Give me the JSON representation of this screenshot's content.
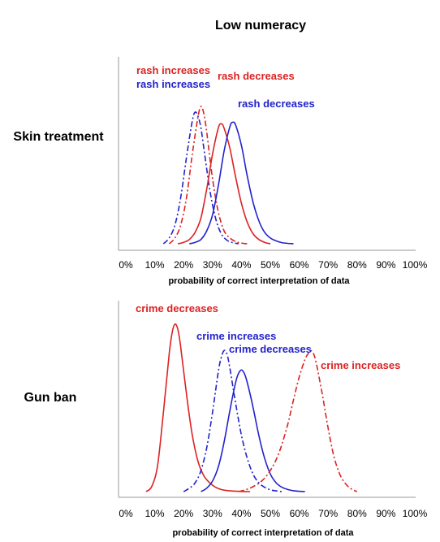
{
  "figure": {
    "title": "Low numeracy"
  },
  "chart_data": [
    {
      "type": "line",
      "row_label": "Skin treatment",
      "xlabel": "probability of correct interpretation of data",
      "ylabel": "",
      "xlim": [
        0,
        100
      ],
      "x_ticks": [
        "0%",
        "10%",
        "20%",
        "30%",
        "40%",
        "50%",
        "60%",
        "70%",
        "80%",
        "90%",
        "100%"
      ],
      "grid": false,
      "series": [
        {
          "name": "rash increases",
          "color": "#dd2222",
          "dash": "dashdot",
          "x": [
            15,
            17,
            19,
            21,
            23,
            25,
            26,
            27,
            28,
            30,
            32,
            34,
            36,
            38,
            40,
            42
          ],
          "y": [
            0.0,
            0.04,
            0.13,
            0.32,
            0.62,
            0.88,
            0.95,
            0.9,
            0.77,
            0.45,
            0.22,
            0.09,
            0.04,
            0.015,
            0.005,
            0.0
          ]
        },
        {
          "name": "rash increases",
          "color": "#2222cc",
          "dash": "dashdot",
          "x": [
            13,
            15,
            17,
            19,
            21,
            23,
            24,
            25,
            26,
            27,
            29,
            31,
            33,
            35,
            37,
            39
          ],
          "y": [
            0.0,
            0.04,
            0.13,
            0.32,
            0.6,
            0.85,
            0.91,
            0.88,
            0.8,
            0.66,
            0.38,
            0.18,
            0.07,
            0.025,
            0.008,
            0.0
          ]
        },
        {
          "name": "rash decreases",
          "color": "#dd2222",
          "dash": "solid",
          "x": [
            18,
            20,
            22,
            24,
            26,
            28,
            30,
            32,
            33,
            34,
            36,
            38,
            40,
            42,
            44,
            46,
            48,
            50
          ],
          "y": [
            0.0,
            0.01,
            0.03,
            0.08,
            0.18,
            0.38,
            0.62,
            0.8,
            0.83,
            0.8,
            0.66,
            0.46,
            0.28,
            0.15,
            0.07,
            0.03,
            0.01,
            0.0
          ]
        },
        {
          "name": "rash decreases",
          "color": "#2222cc",
          "dash": "solid",
          "x": [
            22,
            24,
            26,
            28,
            30,
            32,
            34,
            36,
            37,
            38,
            40,
            42,
            44,
            46,
            48,
            50,
            52,
            54,
            56,
            58
          ],
          "y": [
            0.0,
            0.01,
            0.03,
            0.09,
            0.2,
            0.4,
            0.64,
            0.81,
            0.84,
            0.82,
            0.68,
            0.47,
            0.29,
            0.16,
            0.08,
            0.04,
            0.02,
            0.008,
            0.003,
            0.0
          ]
        }
      ],
      "annotations": [
        {
          "text": "rash increases",
          "color": "#dd2222"
        },
        {
          "text": "rash increases",
          "color": "#2222cc"
        },
        {
          "text": "rash decreases",
          "color": "#dd2222"
        },
        {
          "text": "rash decreases",
          "color": "#2222cc"
        }
      ]
    },
    {
      "type": "line",
      "row_label": "Gun ban",
      "xlabel": "probability of correct interpretation of data",
      "ylabel": "",
      "xlim": [
        0,
        100
      ],
      "x_ticks": [
        "0%",
        "10%",
        "20%",
        "30%",
        "40%",
        "50%",
        "60%",
        "70%",
        "80%",
        "90%",
        "100%"
      ],
      "grid": false,
      "series": [
        {
          "name": "crime decreases",
          "color": "#dd2222",
          "dash": "solid",
          "x": [
            7,
            9,
            11,
            13,
            15,
            16,
            17,
            18,
            19,
            21,
            23,
            25,
            27,
            29,
            31,
            33,
            35,
            37,
            40,
            43
          ],
          "y": [
            0.0,
            0.03,
            0.15,
            0.45,
            0.78,
            0.9,
            0.95,
            0.92,
            0.82,
            0.55,
            0.32,
            0.17,
            0.09,
            0.05,
            0.025,
            0.012,
            0.006,
            0.003,
            0.001,
            0.0
          ]
        },
        {
          "name": "crime increases",
          "color": "#2222cc",
          "dash": "dashdot",
          "x": [
            20,
            22,
            24,
            26,
            28,
            30,
            32,
            33,
            34,
            35,
            36,
            38,
            40,
            42,
            44,
            46,
            48,
            50,
            52,
            54
          ],
          "y": [
            0.0,
            0.02,
            0.05,
            0.12,
            0.25,
            0.45,
            0.68,
            0.76,
            0.8,
            0.78,
            0.7,
            0.5,
            0.32,
            0.19,
            0.1,
            0.05,
            0.025,
            0.01,
            0.004,
            0.0
          ]
        },
        {
          "name": "crime decreases",
          "color": "#2222cc",
          "dash": "solid",
          "x": [
            26,
            28,
            30,
            32,
            34,
            36,
            38,
            39,
            40,
            41,
            42,
            44,
            46,
            48,
            50,
            52,
            54,
            56,
            58,
            60,
            62
          ],
          "y": [
            0.0,
            0.02,
            0.06,
            0.14,
            0.28,
            0.46,
            0.62,
            0.67,
            0.69,
            0.67,
            0.62,
            0.48,
            0.32,
            0.19,
            0.1,
            0.05,
            0.025,
            0.012,
            0.005,
            0.002,
            0.0
          ]
        },
        {
          "name": "crime increases",
          "color": "#dd2222",
          "dash": "dashdot",
          "x": [
            39,
            43,
            47,
            50,
            53,
            56,
            58,
            60,
            62,
            63,
            64,
            65,
            66,
            68,
            70,
            72,
            74,
            76,
            78,
            80
          ],
          "y": [
            0.0,
            0.02,
            0.06,
            0.12,
            0.22,
            0.38,
            0.52,
            0.65,
            0.75,
            0.78,
            0.8,
            0.78,
            0.72,
            0.55,
            0.36,
            0.2,
            0.1,
            0.045,
            0.015,
            0.0
          ]
        }
      ],
      "annotations": [
        {
          "text": "crime decreases",
          "color": "#dd2222"
        },
        {
          "text": "crime increases",
          "color": "#2222cc"
        },
        {
          "text": "crime decreases",
          "color": "#2222cc"
        },
        {
          "text": "crime increases",
          "color": "#dd2222"
        }
      ]
    }
  ]
}
